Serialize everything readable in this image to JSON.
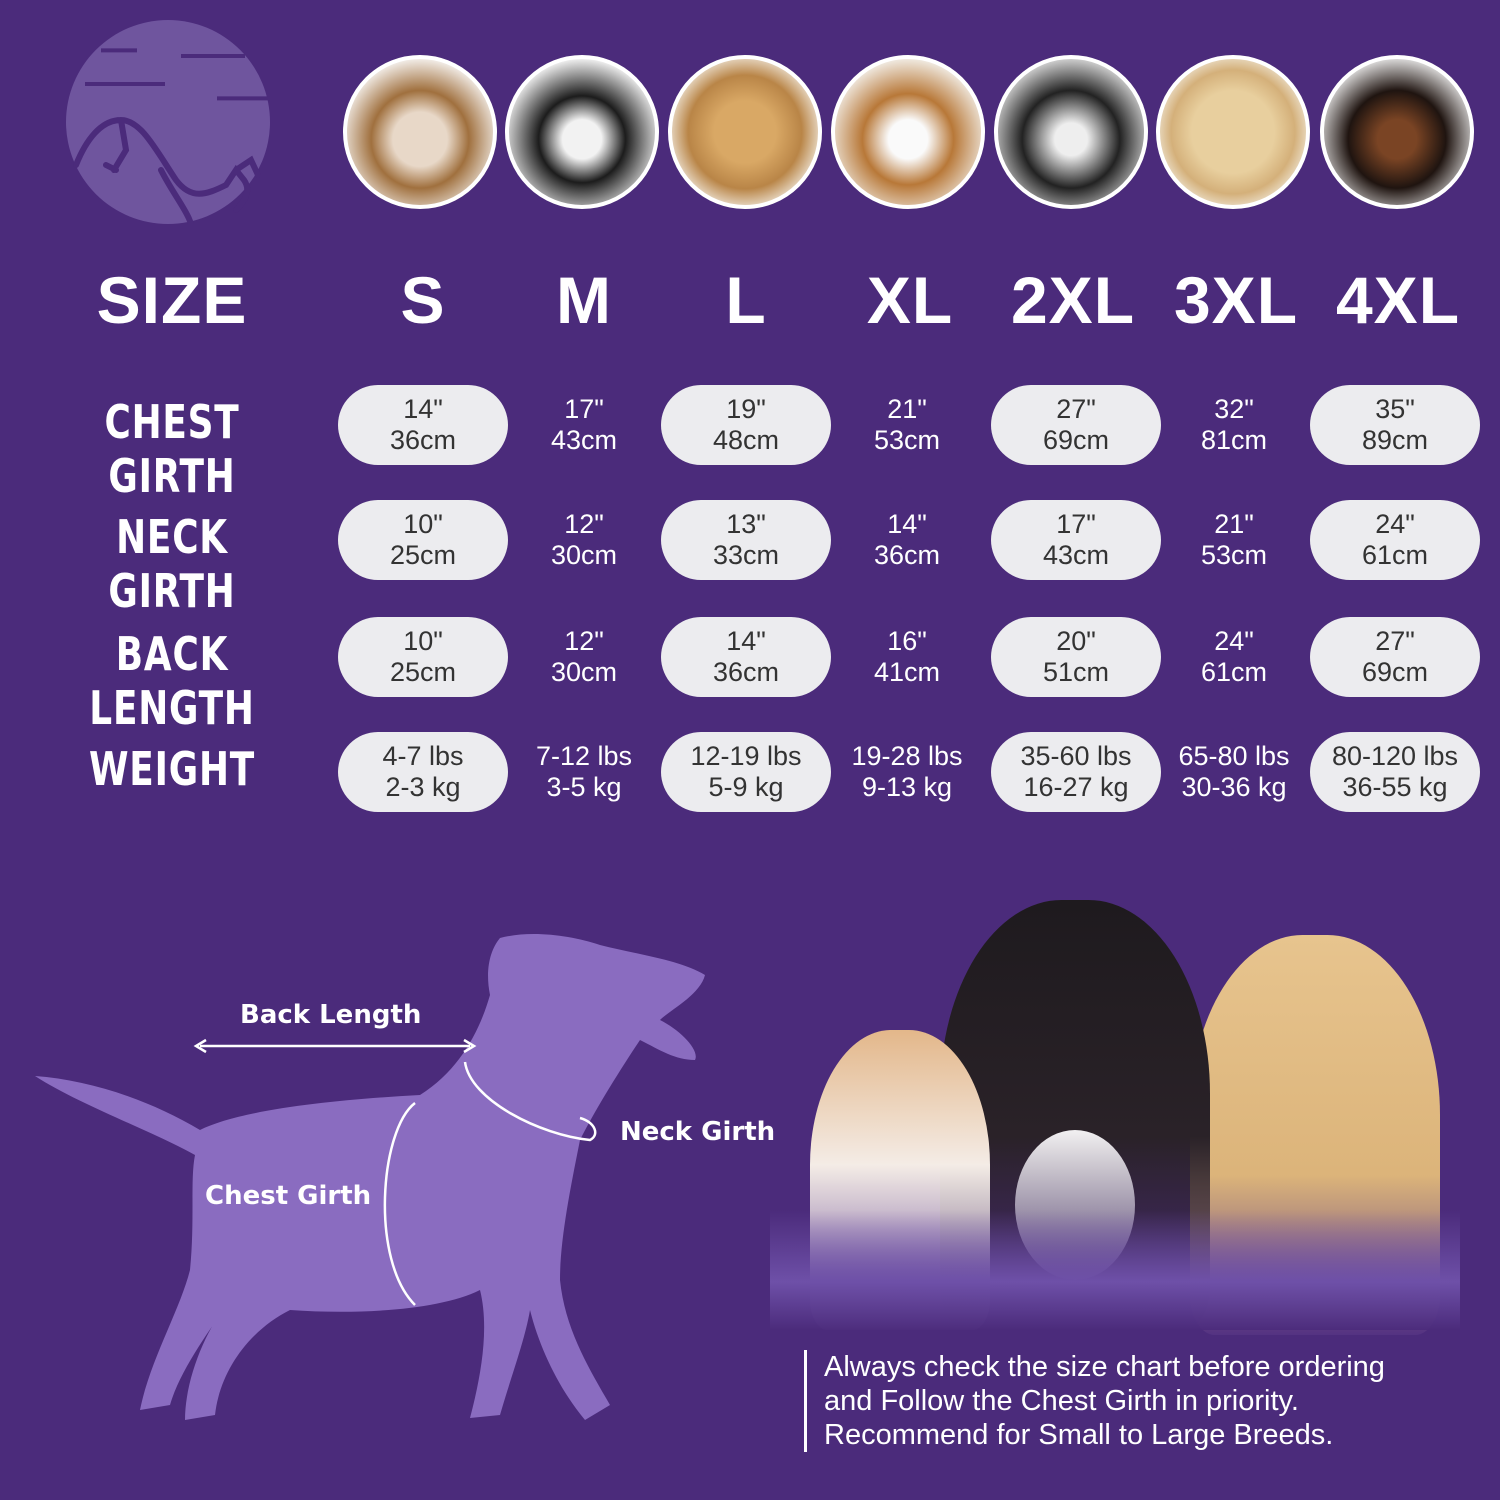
{
  "colors": {
    "background": "#4b2b7b",
    "pill": "#ececef",
    "silhouette": "#8a6cc0",
    "logo": "#6f559e"
  },
  "logo": {
    "icon": "dog-cat-logo-icon"
  },
  "breed_photos": [
    "shih-tzu",
    "boston-terrier",
    "cocker-spaniel",
    "beagle",
    "border-collie",
    "labrador",
    "doberman"
  ],
  "header": {
    "size_label": "SIZE",
    "sizes": [
      "S",
      "M",
      "L",
      "XL",
      "2XL",
      "3XL",
      "4XL"
    ]
  },
  "rows": [
    {
      "label": "CHEST GIRTH",
      "values": [
        [
          "14\"",
          "36cm"
        ],
        [
          "17\"",
          "43cm"
        ],
        [
          "19\"",
          "48cm"
        ],
        [
          "21\"",
          "53cm"
        ],
        [
          "27\"",
          "69cm"
        ],
        [
          "32\"",
          "81cm"
        ],
        [
          "35\"",
          "89cm"
        ]
      ]
    },
    {
      "label": "NECK GIRTH",
      "values": [
        [
          "10\"",
          "25cm"
        ],
        [
          "12\"",
          "30cm"
        ],
        [
          "13\"",
          "33cm"
        ],
        [
          "14\"",
          "36cm"
        ],
        [
          "17\"",
          "43cm"
        ],
        [
          "21\"",
          "53cm"
        ],
        [
          "24\"",
          "61cm"
        ]
      ]
    },
    {
      "label": "BACK LENGTH",
      "values": [
        [
          "10\"",
          "25cm"
        ],
        [
          "12\"",
          "30cm"
        ],
        [
          "14\"",
          "36cm"
        ],
        [
          "16\"",
          "41cm"
        ],
        [
          "20\"",
          "51cm"
        ],
        [
          "24\"",
          "61cm"
        ],
        [
          "27\"",
          "69cm"
        ]
      ]
    },
    {
      "label": "WEIGHT",
      "values": [
        [
          "4-7 lbs",
          "2-3 kg"
        ],
        [
          "7-12 lbs",
          "3-5 kg"
        ],
        [
          "12-19 lbs",
          "5-9 kg"
        ],
        [
          "19-28 lbs",
          "9-13 kg"
        ],
        [
          "35-60 lbs",
          "16-27 kg"
        ],
        [
          "65-80 lbs",
          "30-36 kg"
        ],
        [
          "80-120 lbs",
          "36-55 kg"
        ]
      ]
    }
  ],
  "diagram": {
    "back_length": "Back Length",
    "neck_girth": "Neck Girth",
    "chest_girth": "Chest Girth"
  },
  "note": {
    "lines": [
      "Always check the size chart before ordering",
      "and Follow the Chest Girth in priority.",
      "Recommend for Small to Large Breeds."
    ]
  }
}
